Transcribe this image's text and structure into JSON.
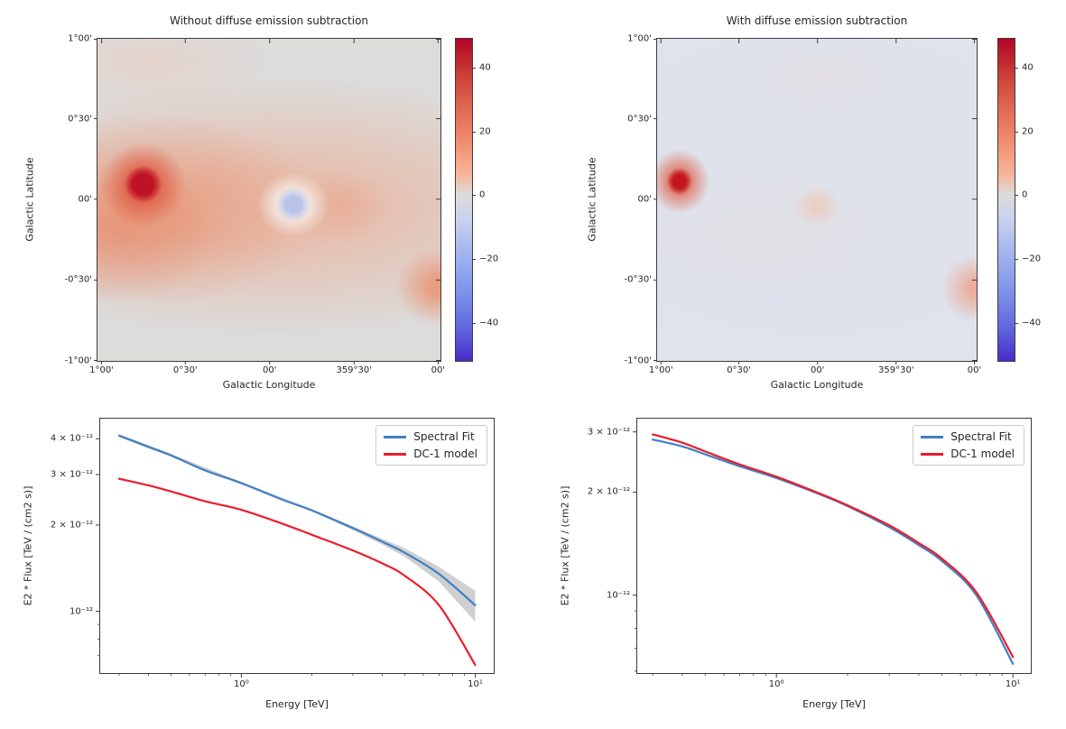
{
  "figure": {
    "background": "#ffffff",
    "description_texts": {
      "map_xlabel": "Galactic Longitude",
      "map_ylabel": "Galactic Latitude",
      "spec_xlabel": "Energy [TeV]",
      "spec_ylabel": "E2 * Flux [TeV / (cm2 s)]"
    }
  },
  "chart_data": [
    {
      "id": "map-without-subtraction",
      "type": "heatmap",
      "title": "Without diffuse emission subtraction",
      "xlabel": "Galactic Longitude",
      "ylabel": "Galactic Latitude",
      "x_tick_labels": [
        "1°00'",
        "0°30'",
        "00'",
        "359°30'",
        "00'"
      ],
      "x_tick_pos": [
        0.012,
        0.256,
        0.502,
        0.748,
        0.993
      ],
      "y_tick_labels": [
        "1°00'",
        "0°30'",
        "00'",
        "-0°30'",
        "-1°00'"
      ],
      "y_tick_pos": [
        0.0,
        0.248,
        0.498,
        0.749,
        1.0
      ],
      "colorbar": {
        "vmin": -52,
        "vmax": 49,
        "tick_values": [
          40,
          20,
          0,
          -20,
          -40
        ],
        "tick_labels": [
          "40",
          "20",
          "0",
          "−20",
          "−40"
        ],
        "cmap": "coolwarm",
        "gradient": [
          [
            0,
            "#b40426"
          ],
          [
            0.05,
            "#bd1f2d"
          ],
          [
            0.12,
            "#cc4338"
          ],
          [
            0.22,
            "#e26952"
          ],
          [
            0.32,
            "#f18d6f"
          ],
          [
            0.42,
            "#f7b598"
          ],
          [
            0.485,
            "#dddcdb"
          ],
          [
            0.56,
            "#c9d2ee"
          ],
          [
            0.66,
            "#a5b6ef"
          ],
          [
            0.78,
            "#8094ea"
          ],
          [
            0.9,
            "#6066dd"
          ],
          [
            1,
            "#4a2bc9"
          ]
        ]
      },
      "features": [
        {
          "name": "bright compact source",
          "lon": "0°46'",
          "lat": "0°05'",
          "peak_value": 50
        },
        {
          "name": "negative residual hole",
          "lon": "359°53'",
          "lat": "-0°02'",
          "value": -12
        },
        {
          "name": "diffuse galactic plane band",
          "extent": "band along b ≈ 0°, strongest toward l = 1°",
          "value": "10-25"
        },
        {
          "name": "right-edge excess",
          "lon": "359°00'",
          "lat": "-0°28'",
          "value": 18
        }
      ],
      "render": {
        "base": "#dcdcdb",
        "blobs": [
          {
            "cx": 0.5,
            "cy": 0.52,
            "rx": 1.05,
            "ry": 0.4,
            "color": "#f1a384",
            "alpha": 0.5,
            "s": 0.25
          },
          {
            "cx": 0.16,
            "cy": 0.53,
            "rx": 0.5,
            "ry": 0.3,
            "color": "#ea8a66",
            "alpha": 0.55,
            "s": 0.15
          },
          {
            "cx": 0.05,
            "cy": 0.6,
            "rx": 0.3,
            "ry": 0.22,
            "color": "#e67f5b",
            "alpha": 0.45,
            "s": 0
          },
          {
            "cx": 0.7,
            "cy": 0.52,
            "rx": 0.16,
            "ry": 0.12,
            "color": "#ee9577",
            "alpha": 0.4,
            "s": 0
          },
          {
            "cx": 0.15,
            "cy": 0.07,
            "rx": 0.35,
            "ry": 0.15,
            "color": "#eec8b8",
            "alpha": 0.45,
            "s": 0
          },
          {
            "cx": 0.997,
            "cy": 0.77,
            "rx": 0.13,
            "ry": 0.12,
            "color": "#ec8c68",
            "alpha": 0.75,
            "s": 0.2
          },
          {
            "cx": 0.571,
            "cy": 0.515,
            "rx": 0.105,
            "ry": 0.1,
            "color": "#f9f6f3",
            "alpha": 0.95,
            "s": 0.3
          },
          {
            "cx": 0.571,
            "cy": 0.515,
            "rx": 0.052,
            "ry": 0.055,
            "color": "#b5c1e9",
            "alpha": 0.95,
            "s": 0.45
          },
          {
            "cx": 0.133,
            "cy": 0.452,
            "rx": 0.125,
            "ry": 0.13,
            "color": "#dd4a33",
            "alpha": 0.85,
            "s": 0.2
          },
          {
            "cx": 0.133,
            "cy": 0.452,
            "rx": 0.055,
            "ry": 0.058,
            "color": "#bf1226",
            "alpha": 1,
            "s": 0.55
          }
        ]
      }
    },
    {
      "id": "map-with-subtraction",
      "type": "heatmap",
      "title": "With diffuse emission subtraction",
      "xlabel": "Galactic Longitude",
      "ylabel": "Galactic Latitude",
      "x_tick_labels": [
        "1°00'",
        "0°30'",
        "00'",
        "359°30'",
        "00'"
      ],
      "x_tick_pos": [
        0.012,
        0.256,
        0.502,
        0.748,
        0.993
      ],
      "y_tick_labels": [
        "1°00'",
        "0°30'",
        "00'",
        "-0°30'",
        "-1°00'"
      ],
      "y_tick_pos": [
        0.0,
        0.248,
        0.498,
        0.749,
        1.0
      ],
      "colorbar": {
        "vmin": -52,
        "vmax": 49,
        "tick_values": [
          40,
          20,
          0,
          -20,
          -40
        ],
        "tick_labels": [
          "40",
          "20",
          "0",
          "−20",
          "−40"
        ],
        "cmap": "coolwarm",
        "gradient": [
          [
            0,
            "#b40426"
          ],
          [
            0.05,
            "#bd1f2d"
          ],
          [
            0.12,
            "#cc4338"
          ],
          [
            0.22,
            "#e26952"
          ],
          [
            0.32,
            "#f18d6f"
          ],
          [
            0.42,
            "#f7b598"
          ],
          [
            0.485,
            "#dddcdb"
          ],
          [
            0.56,
            "#c9d2ee"
          ],
          [
            0.66,
            "#a5b6ef"
          ],
          [
            0.78,
            "#8094ea"
          ],
          [
            0.9,
            "#6066dd"
          ],
          [
            1,
            "#4a2bc9"
          ]
        ]
      },
      "features": [
        {
          "name": "bright compact source",
          "lon": "0°55'",
          "lat": "0°05'",
          "peak_value": 45
        },
        {
          "name": "flat residual background",
          "extent": "whole field",
          "value": "≈3 to -3"
        },
        {
          "name": "right-edge excess",
          "lon": "359°00'",
          "lat": "-0°28'",
          "value": 12
        }
      ],
      "render": {
        "base": "#e0e3ec",
        "blobs": [
          {
            "cx": 0.5,
            "cy": 0.45,
            "rx": 0.9,
            "ry": 0.55,
            "color": "#dee2ee",
            "alpha": 0.5,
            "s": 0.3
          },
          {
            "cx": 0.35,
            "cy": 0.6,
            "rx": 0.4,
            "ry": 0.2,
            "color": "#e9d8ce",
            "alpha": 0.3,
            "s": 0
          },
          {
            "cx": 0.52,
            "cy": 0.12,
            "rx": 0.22,
            "ry": 0.1,
            "color": "#ecd8cc",
            "alpha": 0.28,
            "s": 0
          },
          {
            "cx": 0.5,
            "cy": 0.52,
            "rx": 0.075,
            "ry": 0.065,
            "color": "#f2c3ab",
            "alpha": 0.55,
            "s": 0.2
          },
          {
            "cx": 0.995,
            "cy": 0.775,
            "rx": 0.105,
            "ry": 0.105,
            "color": "#eda186",
            "alpha": 0.8,
            "s": 0.15
          },
          {
            "cx": 0.07,
            "cy": 0.443,
            "rx": 0.095,
            "ry": 0.1,
            "color": "#e0553b",
            "alpha": 0.9,
            "s": 0.15
          },
          {
            "cx": 0.07,
            "cy": 0.443,
            "rx": 0.04,
            "ry": 0.042,
            "color": "#c3161f",
            "alpha": 1,
            "s": 0.5
          }
        ]
      }
    },
    {
      "id": "spectrum-without-subtraction",
      "type": "line",
      "xscale": "log",
      "yscale": "log",
      "xlabel": "Energy [TeV]",
      "ylabel": "E2 * Flux [TeV / (cm2 s)]",
      "xlim": [
        0.249,
        12.0
      ],
      "ylim_1e-12": [
        0.609,
        4.7
      ],
      "x_major_ticks": [
        {
          "value": 1,
          "label": "10⁰"
        },
        {
          "value": 10,
          "label": "10¹"
        }
      ],
      "y_major_ticks": [
        {
          "value": 4,
          "label": "4 × 10⁻¹²"
        },
        {
          "value": 3,
          "label": "3 × 10⁻¹²"
        },
        {
          "value": 2,
          "label": "2 × 10⁻¹²"
        },
        {
          "value": 1,
          "label": "10⁻¹²"
        }
      ],
      "y_minor_ticks": [
        0.9,
        0.8,
        0.7
      ],
      "y_unit": "1e-12 TeV / (cm2 s)",
      "legend": {
        "entries": [
          "Spectral Fit",
          "DC-1 model"
        ],
        "position": "upper right"
      },
      "band": {
        "belongs_to": "Spectral Fit",
        "color": "rgba(120,120,120,0.35)",
        "x": [
          0.3,
          0.5,
          1.0,
          2.0,
          3.0,
          4.0,
          5.0,
          7.0,
          10.0
        ],
        "lo_1e-12": [
          4.05,
          3.46,
          2.77,
          2.23,
          1.92,
          1.71,
          1.55,
          1.27,
          0.92
        ],
        "hi_1e-12": [
          4.15,
          3.54,
          2.83,
          2.27,
          1.98,
          1.79,
          1.66,
          1.43,
          1.18
        ]
      },
      "series": [
        {
          "name": "Spectral Fit",
          "color": "#4080c5",
          "x": [
            0.3,
            0.4,
            0.5,
            0.7,
            1.0,
            1.5,
            2.0,
            3.0,
            4.0,
            5.0,
            7.0,
            10.0
          ],
          "y_1e-12": [
            4.1,
            3.75,
            3.5,
            3.1,
            2.8,
            2.45,
            2.25,
            1.95,
            1.75,
            1.6,
            1.35,
            1.05
          ]
        },
        {
          "name": "DC-1 model",
          "color": "#ec1c2c",
          "x": [
            0.3,
            0.4,
            0.5,
            0.7,
            1.0,
            1.5,
            2.0,
            3.0,
            4.0,
            5.0,
            7.0,
            10.0
          ],
          "y_1e-12": [
            2.9,
            2.75,
            2.62,
            2.42,
            2.26,
            2.02,
            1.85,
            1.63,
            1.47,
            1.33,
            1.05,
            0.65
          ]
        }
      ]
    },
    {
      "id": "spectrum-with-subtraction",
      "type": "line",
      "xscale": "log",
      "yscale": "log",
      "xlabel": "Energy [TeV]",
      "ylabel": "E2 * Flux [TeV / (cm2 s)]",
      "xlim": [
        0.258,
        11.9
      ],
      "ylim_1e-12": [
        0.592,
        3.28
      ],
      "x_major_ticks": [
        {
          "value": 1,
          "label": "10⁰"
        },
        {
          "value": 10,
          "label": "10¹"
        }
      ],
      "y_major_ticks": [
        {
          "value": 3,
          "label": "3 × 10⁻¹²"
        },
        {
          "value": 2,
          "label": "2 × 10⁻¹²"
        },
        {
          "value": 1,
          "label": "10⁻¹²"
        }
      ],
      "y_minor_ticks": [
        0.9,
        0.8,
        0.7,
        0.6
      ],
      "y_unit": "1e-12 TeV / (cm2 s)",
      "legend": {
        "entries": [
          "Spectral Fit",
          "DC-1 model"
        ],
        "position": "upper right"
      },
      "band": null,
      "series": [
        {
          "name": "Spectral Fit",
          "color": "#4080c5",
          "x": [
            0.3,
            0.4,
            0.5,
            0.7,
            1.0,
            1.5,
            2.0,
            3.0,
            4.0,
            5.0,
            7.0,
            10.0
          ],
          "y_1e-12": [
            2.85,
            2.72,
            2.58,
            2.38,
            2.2,
            1.98,
            1.82,
            1.58,
            1.4,
            1.26,
            1.0,
            0.63
          ]
        },
        {
          "name": "DC-1 model",
          "color": "#ec1c2c",
          "x": [
            0.3,
            0.4,
            0.5,
            0.7,
            1.0,
            1.5,
            2.0,
            3.0,
            4.0,
            5.0,
            7.0,
            10.0
          ],
          "y_1e-12": [
            2.95,
            2.79,
            2.63,
            2.41,
            2.22,
            1.99,
            1.83,
            1.6,
            1.42,
            1.28,
            1.02,
            0.66
          ]
        }
      ]
    }
  ]
}
